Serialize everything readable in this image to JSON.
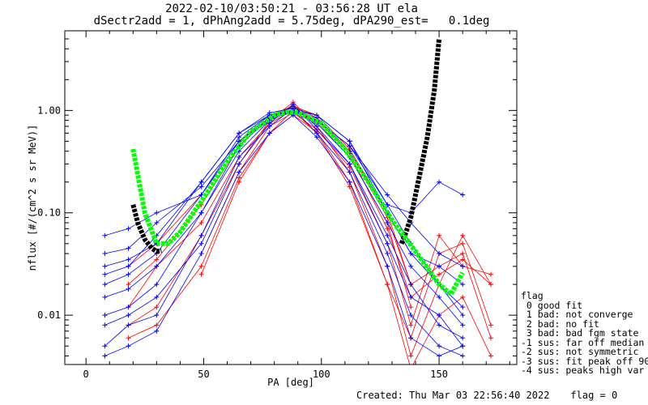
{
  "page": {
    "title_line1": "2022-02-10/03:50:21 - 03:56:28 UT ela",
    "title_line2": "dSectr2add = 1, dPhAng2add = 5.75deg, dPA290_est=   0.1deg",
    "created": "Created: Thu Mar 03 22:56:40 2022",
    "flag_value": "flag = 0"
  },
  "legend": {
    "header": "flag",
    "items": [
      " 0 good fit",
      " 1 bad: not converge",
      " 2 bad: no fit",
      " 3 bad: bad fgm state",
      "-1 sus: far off median",
      "-2 sus: not symmetric",
      "-3 sus: fit peak off 90",
      "-4 sus: peaks high var"
    ]
  },
  "colors": {
    "red_series": "#ff0000",
    "blue_series": "#0000ff",
    "fit_green": "#00ff00",
    "fit_black": "#000000"
  },
  "chart_data": {
    "type": "line",
    "xlabel": "PA [deg]",
    "ylabel": "nflux [#/(cm^2 s sr MeV)]",
    "xlim": [
      -9,
      183
    ],
    "ylim": [
      0.0033,
      6.0
    ],
    "yscale": "log",
    "x_ticks": [
      0,
      50,
      100,
      150
    ],
    "y_ticks": [
      {
        "value": 0.01,
        "label": "0.01"
      },
      {
        "value": 0.1,
        "label": "0.10"
      },
      {
        "value": 1.0,
        "label": "1.00"
      }
    ],
    "sampled_pa": [
      8,
      18,
      30,
      49,
      65,
      78,
      88,
      98,
      112,
      128,
      138,
      150,
      160,
      172
    ],
    "series": [
      {
        "color": "red",
        "values": [
          null,
          0.012,
          0.03,
          0.08,
          0.35,
          0.75,
          1.0,
          0.78,
          0.35,
          0.08,
          0.012,
          null,
          null,
          null
        ]
      },
      {
        "color": "red",
        "values": [
          null,
          0.02,
          0.035,
          0.12,
          0.45,
          0.85,
          1.1,
          0.9,
          0.42,
          0.1,
          0.02,
          null,
          null,
          null
        ]
      },
      {
        "color": "red",
        "values": [
          null,
          null,
          null,
          0.04,
          0.25,
          0.7,
          0.95,
          0.65,
          0.28,
          0.05,
          0.008,
          0.06,
          0.03,
          0.025
        ]
      },
      {
        "color": "red",
        "values": [
          null,
          0.008,
          0.012,
          0.06,
          0.3,
          0.8,
          1.2,
          0.7,
          0.25,
          0.03,
          0.004,
          0.02,
          0.06,
          0.02
        ]
      },
      {
        "color": "red",
        "values": [
          null,
          null,
          null,
          0.025,
          0.2,
          0.6,
          1.0,
          0.6,
          0.18,
          0.02,
          0.006,
          0.04,
          0.05,
          0.008
        ]
      },
      {
        "color": "red",
        "values": [
          null,
          0.03,
          0.05,
          0.15,
          0.5,
          0.9,
          1.1,
          0.85,
          0.4,
          0.09,
          0.02,
          0.03,
          0.04,
          0.006
        ]
      },
      {
        "color": "red",
        "values": [
          null,
          0.006,
          0.008,
          0.03,
          0.22,
          0.6,
          0.9,
          0.62,
          0.2,
          0.02,
          0.003,
          0.01,
          0.015,
          0.004
        ]
      },
      {
        "color": "red",
        "values": [
          null,
          null,
          null,
          null,
          null,
          null,
          null,
          0.82,
          0.38,
          0.07,
          0.015,
          0.025,
          0.035,
          0.02
        ]
      },
      {
        "color": "blue",
        "values": [
          0.06,
          0.07,
          0.1,
          0.15,
          0.5,
          0.8,
          1.0,
          0.8,
          0.45,
          0.12,
          0.1,
          0.2,
          0.15,
          null
        ]
      },
      {
        "color": "blue",
        "values": [
          0.03,
          0.035,
          0.05,
          0.2,
          0.6,
          0.9,
          1.0,
          0.9,
          0.5,
          0.12,
          0.05,
          0.02,
          0.01,
          null
        ]
      },
      {
        "color": "blue",
        "values": [
          0.01,
          0.012,
          0.02,
          0.1,
          0.4,
          0.8,
          1.1,
          0.7,
          0.3,
          0.05,
          0.015,
          0.01,
          0.005,
          null
        ]
      },
      {
        "color": "blue",
        "values": [
          0.02,
          0.025,
          0.04,
          0.15,
          0.55,
          0.9,
          0.95,
          0.75,
          0.35,
          0.08,
          0.03,
          0.015,
          0.008,
          null
        ]
      },
      {
        "color": "blue",
        "values": [
          0.005,
          0.008,
          0.01,
          0.06,
          0.35,
          0.7,
          1.05,
          0.6,
          0.25,
          0.04,
          0.01,
          0.005,
          0.004,
          null
        ]
      },
      {
        "color": "blue",
        "values": [
          0.015,
          0.018,
          0.03,
          0.1,
          0.45,
          0.85,
          1.0,
          0.85,
          0.4,
          0.1,
          0.04,
          0.02,
          0.012,
          null
        ]
      },
      {
        "color": "blue",
        "values": [
          0.008,
          0.01,
          0.015,
          0.05,
          0.3,
          0.75,
          1.15,
          0.65,
          0.3,
          0.06,
          0.02,
          0.008,
          0.006,
          null
        ]
      },
      {
        "color": "blue",
        "values": [
          0.04,
          0.045,
          0.08,
          0.18,
          0.5,
          0.85,
          1.0,
          0.8,
          0.45,
          0.15,
          0.08,
          0.04,
          0.03,
          null
        ]
      },
      {
        "color": "blue",
        "values": [
          0.004,
          0.005,
          0.007,
          0.04,
          0.25,
          0.6,
          0.9,
          0.55,
          0.2,
          0.03,
          0.006,
          0.004,
          0.005,
          null
        ]
      },
      {
        "color": "blue",
        "values": [
          0.025,
          0.03,
          0.06,
          0.2,
          0.6,
          0.95,
          1.05,
          0.9,
          0.5,
          0.1,
          0.04,
          0.03,
          0.02,
          null
        ]
      }
    ],
    "fit_green": {
      "pa": [
        20,
        25,
        30,
        35,
        40,
        50,
        60,
        70,
        80,
        86,
        90,
        100,
        110,
        120,
        130,
        140,
        150,
        155,
        160
      ],
      "values": [
        0.42,
        0.1,
        0.05,
        0.05,
        0.065,
        0.14,
        0.32,
        0.62,
        0.9,
        0.97,
        0.95,
        0.75,
        0.42,
        0.2,
        0.085,
        0.042,
        0.02,
        0.016,
        0.026
      ]
    },
    "fit_black": [
      {
        "pa": [
          20,
          22,
          25,
          28,
          30,
          32
        ],
        "values": [
          0.12,
          0.08,
          0.055,
          0.045,
          0.042,
          0.043
        ]
      },
      {
        "pa": [
          134,
          136,
          138,
          140,
          142,
          145,
          148,
          150
        ],
        "values": [
          0.05,
          0.065,
          0.09,
          0.15,
          0.25,
          0.55,
          1.6,
          5.0
        ]
      }
    ]
  }
}
